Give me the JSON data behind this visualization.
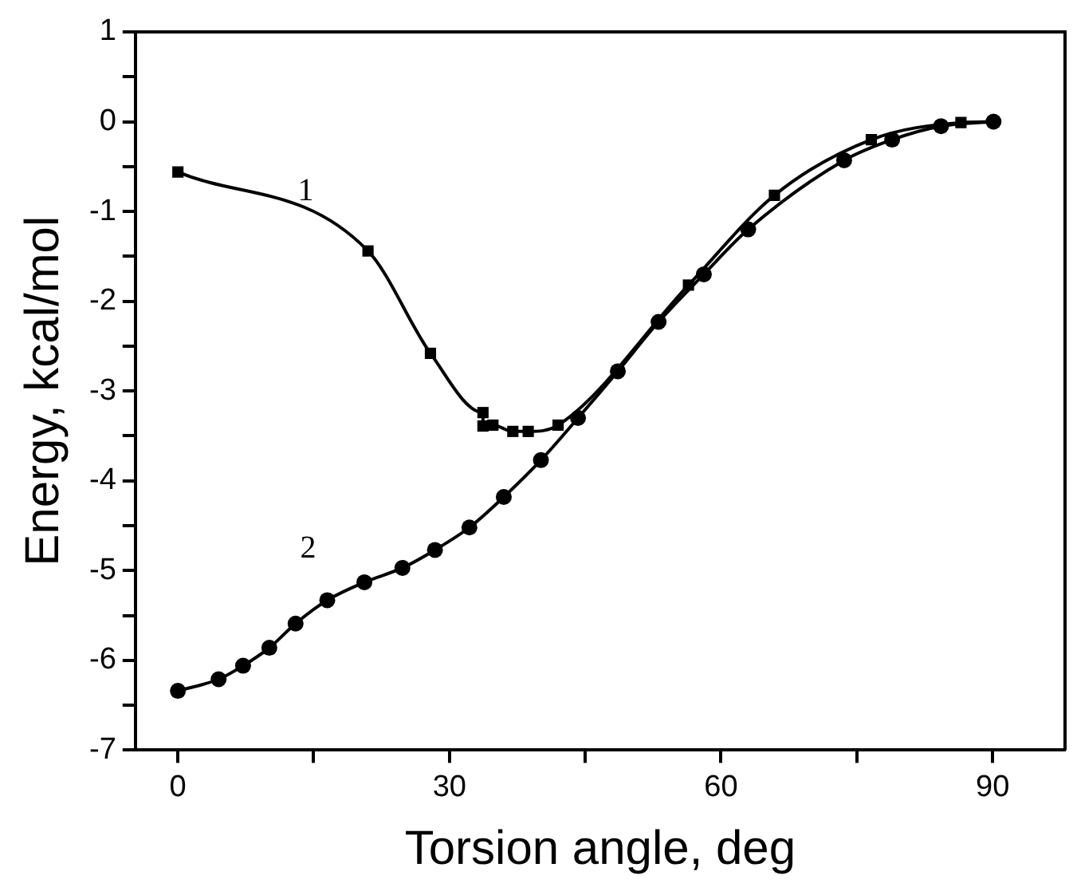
{
  "chart_data": {
    "type": "line",
    "xlabel": "Torsion angle, deg",
    "ylabel": "Energy, kcal/mol",
    "xlim": [
      -4.7,
      98
    ],
    "xticks": [
      0,
      {
        "value": 15,
        "label": null
      },
      30,
      {
        "value": 45,
        "label": null
      },
      60,
      {
        "value": 75,
        "label": null
      },
      90
    ],
    "ylim": [
      -7,
      1
    ],
    "yticks": [
      -7,
      {
        "value": -6.5,
        "label": null
      },
      -6,
      {
        "value": -5.5,
        "label": null
      },
      -5,
      {
        "value": -4.5,
        "label": null
      },
      -4,
      {
        "value": -3.5,
        "label": null
      },
      -3,
      {
        "value": -2.5,
        "label": null
      },
      -2,
      {
        "value": -1.5,
        "label": null
      },
      -1,
      {
        "value": -0.5,
        "label": null
      },
      0,
      {
        "value": 0.5,
        "label": null
      },
      1
    ],
    "grid": false,
    "legend": false,
    "line_style": "solid",
    "series": [
      {
        "name": "1",
        "color": "#000000",
        "marker": "square",
        "x": [
          0,
          21.0,
          27.9,
          33.7,
          33.7,
          34.8,
          37.0,
          38.7,
          42.0,
          56.4,
          65.9,
          76.6,
          86.5,
          90.1
        ],
        "values": [
          -0.56,
          -1.44,
          -2.58,
          -3.24,
          -3.39,
          -3.38,
          -3.45,
          -3.45,
          -3.38,
          -1.82,
          -0.82,
          -0.2,
          -0.01,
          0
        ]
      },
      {
        "name": "2",
        "color": "#000000",
        "marker": "circle",
        "x": [
          0,
          4.5,
          7.2,
          10.1,
          13.0,
          16.5,
          20.6,
          24.8,
          28.4,
          32.2,
          36.0,
          40.1,
          44.2,
          48.6,
          53.1,
          58.1,
          63.0,
          73.6,
          78.9,
          84.3,
          90.1
        ],
        "values": [
          -6.34,
          -6.21,
          -6.06,
          -5.86,
          -5.59,
          -5.33,
          -5.13,
          -4.97,
          -4.77,
          -4.52,
          -4.18,
          -3.77,
          -3.3,
          -2.78,
          -2.23,
          -1.7,
          -1.2,
          -0.43,
          -0.2,
          -0.05,
          0
        ]
      }
    ]
  }
}
